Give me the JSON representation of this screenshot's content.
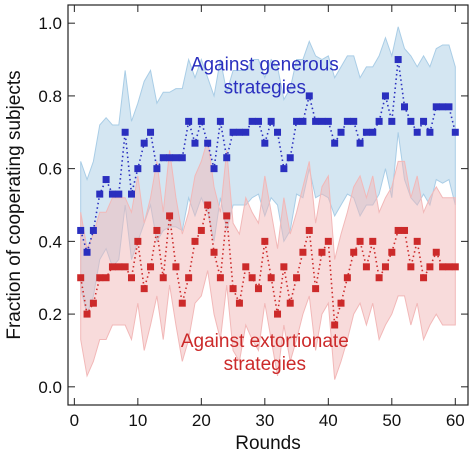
{
  "chart_data": {
    "type": "line",
    "xlabel": "Rounds",
    "ylabel": "Fraction of cooperating subjects",
    "xlim": [
      -1,
      62
    ],
    "ylim": [
      -0.05,
      1.05
    ],
    "x_ticks": [
      0,
      10,
      20,
      30,
      40,
      50,
      60
    ],
    "y_ticks": [
      0.0,
      0.2,
      0.4,
      0.6,
      0.8,
      1.0
    ],
    "y_tick_labels": [
      "0.0",
      "0.2",
      "0.4",
      "0.6",
      "0.8",
      "1.0"
    ],
    "grid": false,
    "x": [
      1,
      2,
      3,
      4,
      5,
      6,
      7,
      8,
      9,
      10,
      11,
      12,
      13,
      14,
      15,
      16,
      17,
      18,
      19,
      20,
      21,
      22,
      23,
      24,
      25,
      26,
      27,
      28,
      29,
      30,
      31,
      32,
      33,
      34,
      35,
      36,
      37,
      38,
      39,
      40,
      41,
      42,
      43,
      44,
      45,
      46,
      47,
      48,
      49,
      50,
      51,
      52,
      53,
      54,
      55,
      56,
      57,
      58,
      59,
      60
    ],
    "series": [
      {
        "color": "#2a2fbf",
        "band_color": "#a9cde6",
        "values": [
          0.43,
          0.37,
          0.43,
          0.53,
          0.57,
          0.53,
          0.53,
          0.7,
          0.53,
          0.6,
          0.67,
          0.7,
          0.6,
          0.63,
          0.63,
          0.63,
          0.63,
          0.73,
          0.67,
          0.73,
          0.67,
          0.6,
          0.73,
          0.63,
          0.7,
          0.7,
          0.7,
          0.73,
          0.73,
          0.67,
          0.73,
          0.7,
          0.6,
          0.63,
          0.73,
          0.73,
          0.8,
          0.73,
          0.73,
          0.73,
          0.67,
          0.7,
          0.73,
          0.73,
          0.67,
          0.7,
          0.7,
          0.73,
          0.8,
          0.73,
          0.9,
          0.77,
          0.73,
          0.7,
          0.73,
          0.7,
          0.77,
          0.77,
          0.77,
          0.7
        ],
        "lower": [
          0.27,
          0.2,
          0.25,
          0.35,
          0.38,
          0.33,
          0.35,
          0.5,
          0.35,
          0.4,
          0.45,
          0.5,
          0.4,
          0.43,
          0.44,
          0.44,
          0.43,
          0.52,
          0.47,
          0.52,
          0.48,
          0.4,
          0.52,
          0.43,
          0.5,
          0.5,
          0.5,
          0.52,
          0.53,
          0.47,
          0.52,
          0.5,
          0.4,
          0.43,
          0.53,
          0.52,
          0.6,
          0.52,
          0.53,
          0.52,
          0.47,
          0.5,
          0.53,
          0.52,
          0.47,
          0.5,
          0.5,
          0.53,
          0.6,
          0.52,
          0.7,
          0.57,
          0.52,
          0.5,
          0.53,
          0.5,
          0.57,
          0.56,
          0.57,
          0.5
        ],
        "upper": [
          0.62,
          0.57,
          0.62,
          0.72,
          0.74,
          0.72,
          0.72,
          0.87,
          0.73,
          0.78,
          0.84,
          0.87,
          0.78,
          0.81,
          0.81,
          0.82,
          0.82,
          0.9,
          0.85,
          0.9,
          0.85,
          0.8,
          0.9,
          0.81,
          0.87,
          0.87,
          0.87,
          0.9,
          0.9,
          0.85,
          0.9,
          0.88,
          0.79,
          0.82,
          0.9,
          0.9,
          0.95,
          0.91,
          0.9,
          0.91,
          0.85,
          0.88,
          0.91,
          0.91,
          0.85,
          0.88,
          0.88,
          0.91,
          0.96,
          0.91,
          0.99,
          0.93,
          0.91,
          0.88,
          0.91,
          0.88,
          0.93,
          0.94,
          0.94,
          0.88
        ]
      },
      {
        "color": "#cc2a2a",
        "band_color": "#f2b8b8",
        "values": [
          0.3,
          0.2,
          0.23,
          0.3,
          0.3,
          0.33,
          0.33,
          0.33,
          0.3,
          0.4,
          0.27,
          0.33,
          0.43,
          0.3,
          0.47,
          0.33,
          0.23,
          0.3,
          0.4,
          0.43,
          0.5,
          0.37,
          0.3,
          0.47,
          0.27,
          0.23,
          0.33,
          0.3,
          0.27,
          0.4,
          0.3,
          0.2,
          0.33,
          0.23,
          0.3,
          0.37,
          0.43,
          0.27,
          0.37,
          0.4,
          0.17,
          0.23,
          0.3,
          0.37,
          0.4,
          0.33,
          0.4,
          0.3,
          0.33,
          0.37,
          0.43,
          0.43,
          0.33,
          0.4,
          0.3,
          0.33,
          0.37,
          0.33,
          0.33,
          0.33
        ],
        "lower": [
          0.13,
          0.03,
          0.07,
          0.13,
          0.13,
          0.17,
          0.17,
          0.17,
          0.13,
          0.23,
          0.1,
          0.17,
          0.25,
          0.13,
          0.28,
          0.17,
          0.07,
          0.13,
          0.23,
          0.25,
          0.32,
          0.2,
          0.13,
          0.28,
          0.1,
          0.07,
          0.17,
          0.13,
          0.1,
          0.23,
          0.13,
          0.03,
          0.17,
          0.07,
          0.13,
          0.2,
          0.25,
          0.1,
          0.2,
          0.23,
          0.02,
          0.07,
          0.13,
          0.2,
          0.23,
          0.17,
          0.23,
          0.13,
          0.17,
          0.2,
          0.25,
          0.25,
          0.17,
          0.23,
          0.13,
          0.17,
          0.2,
          0.17,
          0.17,
          0.17
        ],
        "upper": [
          0.48,
          0.38,
          0.42,
          0.48,
          0.48,
          0.52,
          0.52,
          0.52,
          0.48,
          0.58,
          0.45,
          0.52,
          0.62,
          0.48,
          0.65,
          0.52,
          0.42,
          0.48,
          0.58,
          0.62,
          0.68,
          0.55,
          0.48,
          0.65,
          0.45,
          0.42,
          0.52,
          0.48,
          0.45,
          0.58,
          0.48,
          0.38,
          0.52,
          0.42,
          0.48,
          0.55,
          0.62,
          0.45,
          0.55,
          0.58,
          0.35,
          0.42,
          0.48,
          0.55,
          0.58,
          0.52,
          0.58,
          0.48,
          0.52,
          0.55,
          0.62,
          0.62,
          0.52,
          0.58,
          0.48,
          0.52,
          0.55,
          0.52,
          0.52,
          0.52
        ]
      }
    ],
    "annotations": [
      {
        "lines": [
          "Against generous",
          "strategies"
        ],
        "color": "#2a2fbf",
        "x": 30,
        "y": 0.87
      },
      {
        "lines": [
          "Against extortionate",
          "strategies"
        ],
        "color": "#cc2a2a",
        "x": 30,
        "y": 0.11
      }
    ]
  }
}
